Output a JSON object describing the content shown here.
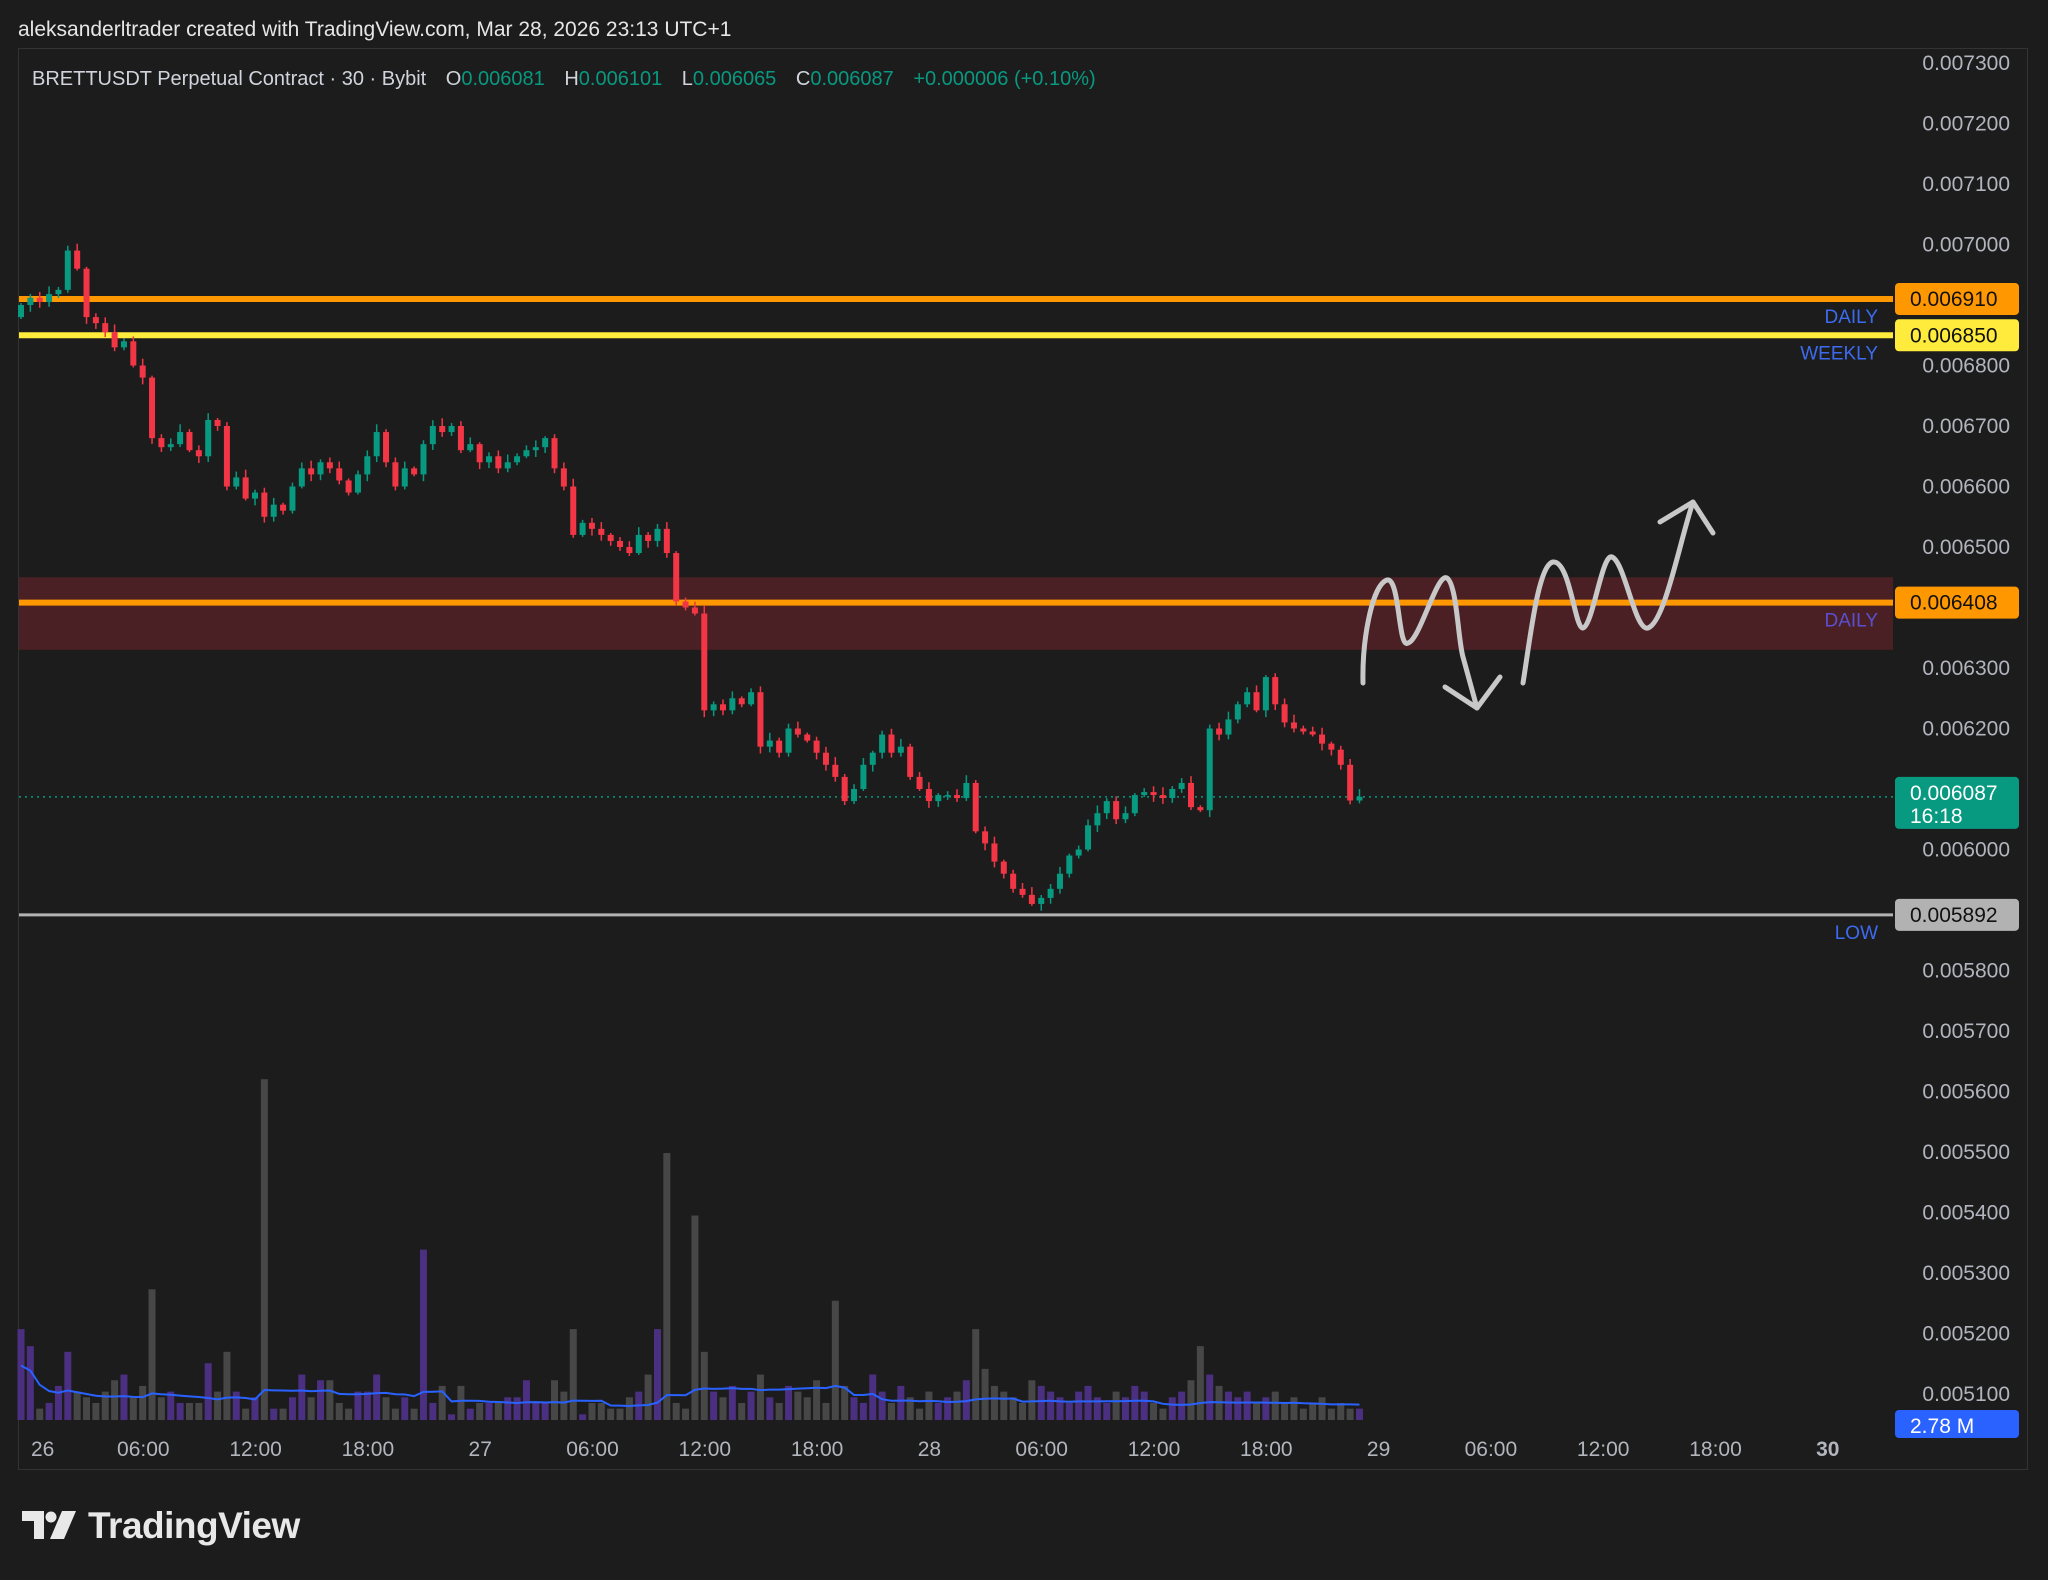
{
  "header": {
    "title": "aleksanderltrader created with TradingView.com, Mar 28, 2026 23:13 UTC+1"
  },
  "legend": {
    "symbol": "BRETTUSDT Perpetual Contract · 30 · Bybit",
    "o_label": "O",
    "o": "0.006081",
    "h_label": "H",
    "h": "0.006101",
    "l_label": "L",
    "l": "0.006065",
    "c_label": "C",
    "c": "0.006087",
    "change": "+0.000006 (+0.10%)"
  },
  "colors": {
    "up": "#089981",
    "down": "#f23645",
    "vol_up": "#4b2f80",
    "vol_down": "#474747",
    "vol_ma": "#2962ff",
    "daily": "#ff9800",
    "weekly": "#ffeb3b",
    "low": "#b2b2b2",
    "zone": "#4a2024",
    "drawing": "#c8c8c8"
  },
  "chart_data": {
    "type": "candlestick",
    "interval": "30",
    "price_ticks": [
      "0.007300",
      "0.007200",
      "0.007100",
      "0.007000",
      "0.006800",
      "0.006700",
      "0.006600",
      "0.006500",
      "0.006300",
      "0.006200",
      "0.006000",
      "0.005800",
      "0.005700",
      "0.005600",
      "0.005500",
      "0.005400",
      "0.005300",
      "0.005200",
      "0.005100"
    ],
    "ylim": [
      0.0051,
      0.0073
    ],
    "time_ticks": [
      "26",
      "06:00",
      "12:00",
      "18:00",
      "27",
      "06:00",
      "12:00",
      "18:00",
      "28",
      "06:00",
      "12:00",
      "18:00",
      "29",
      "06:00",
      "12:00",
      "18:00",
      "30"
    ],
    "first_open": 0.00688,
    "closes": [
      0.0069,
      0.006912,
      0.006905,
      0.006918,
      0.006925,
      0.00699,
      0.00696,
      0.00688,
      0.00687,
      0.006855,
      0.00683,
      0.00684,
      0.0068,
      0.00678,
      0.00668,
      0.006665,
      0.00667,
      0.00669,
      0.00666,
      0.00665,
      0.00671,
      0.0067,
      0.0066,
      0.006615,
      0.00658,
      0.00659,
      0.00655,
      0.00657,
      0.00656,
      0.0066,
      0.00663,
      0.00662,
      0.00664,
      0.00663,
      0.00661,
      0.00659,
      0.00662,
      0.00665,
      0.00669,
      0.00664,
      0.0066,
      0.00663,
      0.00662,
      0.00667,
      0.0067,
      0.00669,
      0.0067,
      0.00666,
      0.00667,
      0.00664,
      0.00665,
      0.00663,
      0.00664,
      0.00665,
      0.00666,
      0.006665,
      0.00668,
      0.00663,
      0.0066,
      0.00652,
      0.00654,
      0.00653,
      0.00652,
      0.00651,
      0.0065,
      0.00649,
      0.00652,
      0.00651,
      0.00653,
      0.00649,
      0.00641,
      0.0064,
      0.00639,
      0.00623,
      0.00624,
      0.00623,
      0.00625,
      0.00624,
      0.00626,
      0.00617,
      0.00618,
      0.00616,
      0.0062,
      0.00619,
      0.00618,
      0.00616,
      0.00614,
      0.00612,
      0.00608,
      0.0061,
      0.00614,
      0.00616,
      0.00619,
      0.00616,
      0.00617,
      0.00612,
      0.0061,
      0.00608,
      0.00609,
      0.00609,
      0.006085,
      0.00611,
      0.00603,
      0.00601,
      0.00598,
      0.00596,
      0.005935,
      0.005925,
      0.00591,
      0.00592,
      0.005935,
      0.00596,
      0.00599,
      0.006,
      0.00604,
      0.00606,
      0.00608,
      0.00605,
      0.00606,
      0.00609,
      0.006095,
      0.00609,
      0.006085,
      0.0061,
      0.00611,
      0.00607,
      0.006065,
      0.0062,
      0.00619,
      0.006215,
      0.00624,
      0.00626,
      0.00623,
      0.006285,
      0.00624,
      0.00621,
      0.0062,
      0.006195,
      0.00619,
      0.006175,
      0.006165,
      0.00614,
      0.006081,
      0.006087
    ],
    "volumes_m": [
      16,
      13,
      2,
      3,
      6,
      12,
      5,
      4,
      3,
      5,
      7,
      8,
      4,
      6,
      23,
      4,
      5,
      3,
      3,
      3,
      10,
      5,
      12,
      5,
      2,
      4,
      60,
      2,
      2,
      4,
      8,
      4,
      7,
      7,
      3,
      2,
      5,
      5,
      8,
      4,
      2,
      4,
      2,
      30,
      3,
      6,
      1,
      6,
      2,
      3,
      3,
      3,
      4,
      4,
      7,
      3,
      3,
      7,
      5,
      16,
      1,
      3,
      3,
      2,
      2,
      4,
      5,
      8,
      16,
      47,
      3,
      2,
      36,
      12,
      5,
      4,
      6,
      3,
      5,
      8,
      4,
      3,
      6,
      5,
      4,
      7,
      3,
      21,
      6,
      4,
      3,
      8,
      5,
      3,
      6,
      4,
      2,
      5,
      3,
      4,
      5,
      7,
      16,
      9,
      6,
      5,
      4,
      3,
      7,
      6,
      5,
      4,
      3,
      5,
      6,
      4,
      3,
      5,
      4,
      6,
      5,
      3,
      2,
      4,
      5,
      7,
      13,
      8,
      6,
      5,
      4,
      5,
      3,
      4,
      5,
      3,
      4,
      2,
      3,
      4,
      2,
      3,
      2,
      2
    ],
    "volume_ma_label": "2.78 M",
    "levels": [
      {
        "price": 0.00691,
        "label": "0.006910",
        "tag": "DAILY",
        "color": "#ff9800"
      },
      {
        "price": 0.00685,
        "label": "0.006850",
        "tag": "WEEKLY",
        "color": "#ffeb3b"
      },
      {
        "price": 0.006408,
        "label": "0.006408",
        "tag": "DAILY",
        "color": "#ff9800"
      },
      {
        "price": 0.005892,
        "label": "0.005892",
        "tag": "LOW",
        "color": "#b2b2b2"
      }
    ],
    "zone": [
      0.00633,
      0.00645
    ],
    "last_price": {
      "label": "0.006087",
      "countdown": "16:18",
      "price": 0.006087
    }
  },
  "branding": {
    "logo_text": "TradingView"
  }
}
